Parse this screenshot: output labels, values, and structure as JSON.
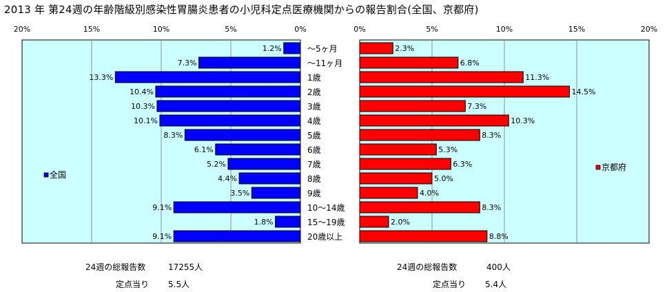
{
  "title": "2013 年 第24週の年齢階級別感染性胃腸炎患者の小児科定点医療機関からの報告割合(全国、京都府)",
  "colors": {
    "national": "#0000ff",
    "kyoto": "#ff0000",
    "plot_bg": "#ccffff"
  },
  "chart_data": [
    {
      "type": "bar",
      "orientation": "horizontal",
      "direction": "leftward",
      "categories": [
        "～5ヶ月",
        "～11ヶ月",
        "1歳",
        "2歳",
        "3歳",
        "4歳",
        "5歳",
        "6歳",
        "7歳",
        "8歳",
        "9歳",
        "10～14歳",
        "15～19歳",
        "20歳以上"
      ],
      "series": [
        {
          "name": "全国",
          "values": [
            1.2,
            7.3,
            13.3,
            10.4,
            10.3,
            10.1,
            8.3,
            6.1,
            5.2,
            4.4,
            3.5,
            9.1,
            1.8,
            9.1
          ],
          "labels": [
            "1.2%",
            "7.3%",
            "13.3%",
            "10.4%",
            "10.3%",
            "10.1%",
            "8.3%",
            "6.1%",
            "5.2%",
            "4.4%",
            "3.5%",
            "9.1%",
            "1.8%",
            "9.1%"
          ]
        }
      ],
      "xlim": [
        0,
        20
      ],
      "x_tick_labels": [
        "20%",
        "15%",
        "10%",
        "5%",
        "0%"
      ],
      "grid": true,
      "legend": "left-middle"
    },
    {
      "type": "bar",
      "orientation": "horizontal",
      "direction": "rightward",
      "categories": [
        "～5ヶ月",
        "～11ヶ月",
        "1歳",
        "2歳",
        "3歳",
        "4歳",
        "5歳",
        "6歳",
        "7歳",
        "8歳",
        "9歳",
        "10～14歳",
        "15～19歳",
        "20歳以上"
      ],
      "series": [
        {
          "name": "京都府",
          "values": [
            2.3,
            6.8,
            11.3,
            14.5,
            7.3,
            10.3,
            8.3,
            5.3,
            6.3,
            5.0,
            4.0,
            8.3,
            2.0,
            8.8
          ],
          "labels": [
            "2.3%",
            "6.8%",
            "11.3%",
            "14.5%",
            "7.3%",
            "10.3%",
            "8.3%",
            "5.3%",
            "6.3%",
            "5.0%",
            "4.0%",
            "8.3%",
            "2.0%",
            "8.8%"
          ]
        }
      ],
      "xlim": [
        0,
        20
      ],
      "x_tick_labels": [
        "0%",
        "5%",
        "10%",
        "15%",
        "20%"
      ],
      "grid": true,
      "legend": "right-middle"
    }
  ],
  "footer": {
    "national": {
      "total_label": "24週の総報告数",
      "total_value": "17255人",
      "per_label": "定点当り",
      "per_value": "5.5人"
    },
    "kyoto": {
      "total_label": "24週の総報告数",
      "total_value": "400人",
      "per_label": "定点当り",
      "per_value": "5.4人"
    }
  }
}
